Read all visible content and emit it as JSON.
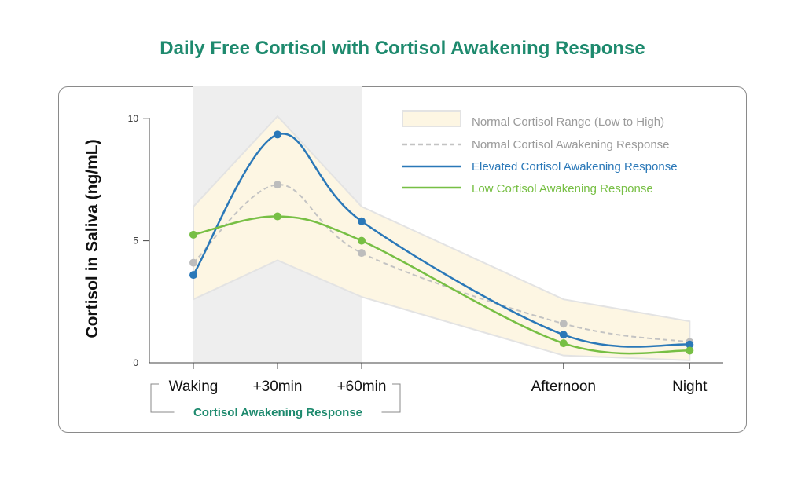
{
  "title": "Daily Free Cortisol with Cortisol Awakening Response",
  "chart_data": {
    "type": "line",
    "title": "Daily Free Cortisol with Cortisol Awakening Response",
    "xlabel": "",
    "ylabel": "Cortisol in Saliva (ng/mL)",
    "categories": [
      "Waking",
      "+30min",
      "+60min",
      "Afternoon",
      "Night"
    ],
    "x_positions": [
      0,
      1,
      2,
      4.4,
      5.9
    ],
    "yticks": [
      0,
      5,
      10
    ],
    "ylim": [
      0,
      10.2
    ],
    "grid": false,
    "highlight_region": {
      "label": "Cortisol Awakening Response",
      "from_category": "Waking",
      "to_category": "+60min"
    },
    "range": {
      "name": "Normal Cortisol Range (Low to High)",
      "low": [
        2.6,
        4.2,
        2.7,
        0.3,
        0.1
      ],
      "high": [
        6.4,
        10.1,
        6.4,
        2.6,
        1.7
      ],
      "color": "#fdf6e3"
    },
    "series": [
      {
        "name": "Normal Cortisol Awakening Response",
        "values": [
          4.1,
          7.3,
          4.5,
          1.6,
          0.85
        ],
        "color": "#c3c3c3",
        "style": "dashed"
      },
      {
        "name": "Elevated Cortisol Awakening Response",
        "values": [
          3.6,
          9.35,
          5.8,
          1.15,
          0.75
        ],
        "color": "#2a78b8",
        "style": "solid"
      },
      {
        "name": "Low Cortisol Awakening Response",
        "values": [
          5.25,
          6.0,
          5.0,
          0.8,
          0.5
        ],
        "color": "#77bf44",
        "style": "solid"
      }
    ],
    "legend_position": "top-right"
  }
}
